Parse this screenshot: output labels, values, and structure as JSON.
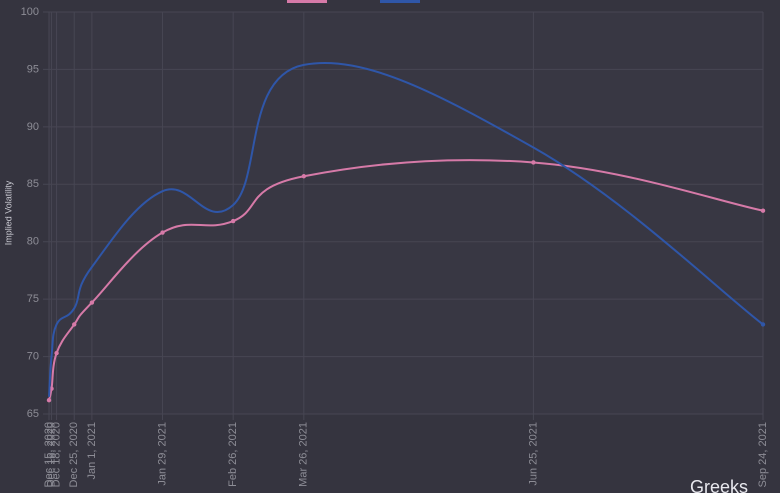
{
  "chart_data": {
    "type": "line",
    "y_label": "Implied Volatility",
    "x": [
      "Dec 15, 2020",
      "Dec 16, 2020",
      "Dec 18, 2020",
      "Dec 25, 2020",
      "Jan 1, 2021",
      "Jan 29, 2021",
      "Feb 26, 2021",
      "Mar 26, 2021",
      "Jun 25, 2021",
      "Sep 24, 2021"
    ],
    "xlim": [
      "Dec 15, 2020",
      "Sep 24, 2021"
    ],
    "series": [
      {
        "color": "#d67aa8",
        "points": true,
        "values": [
          66.2,
          67.2,
          70.3,
          72.8,
          74.7,
          80.8,
          81.8,
          85.7,
          86.9,
          82.7
        ]
      },
      {
        "color": "#2f56a8",
        "points": false,
        "values": [
          66.5,
          70.0,
          72.8,
          74.2,
          77.8,
          84.4,
          83.2,
          95.4,
          88.2,
          72.8
        ]
      }
    ],
    "ylim": [
      65,
      100
    ],
    "yticks": [
      65,
      70,
      75,
      80,
      85,
      90,
      95,
      100
    ],
    "grid": true
  },
  "watermark": "Greeks"
}
